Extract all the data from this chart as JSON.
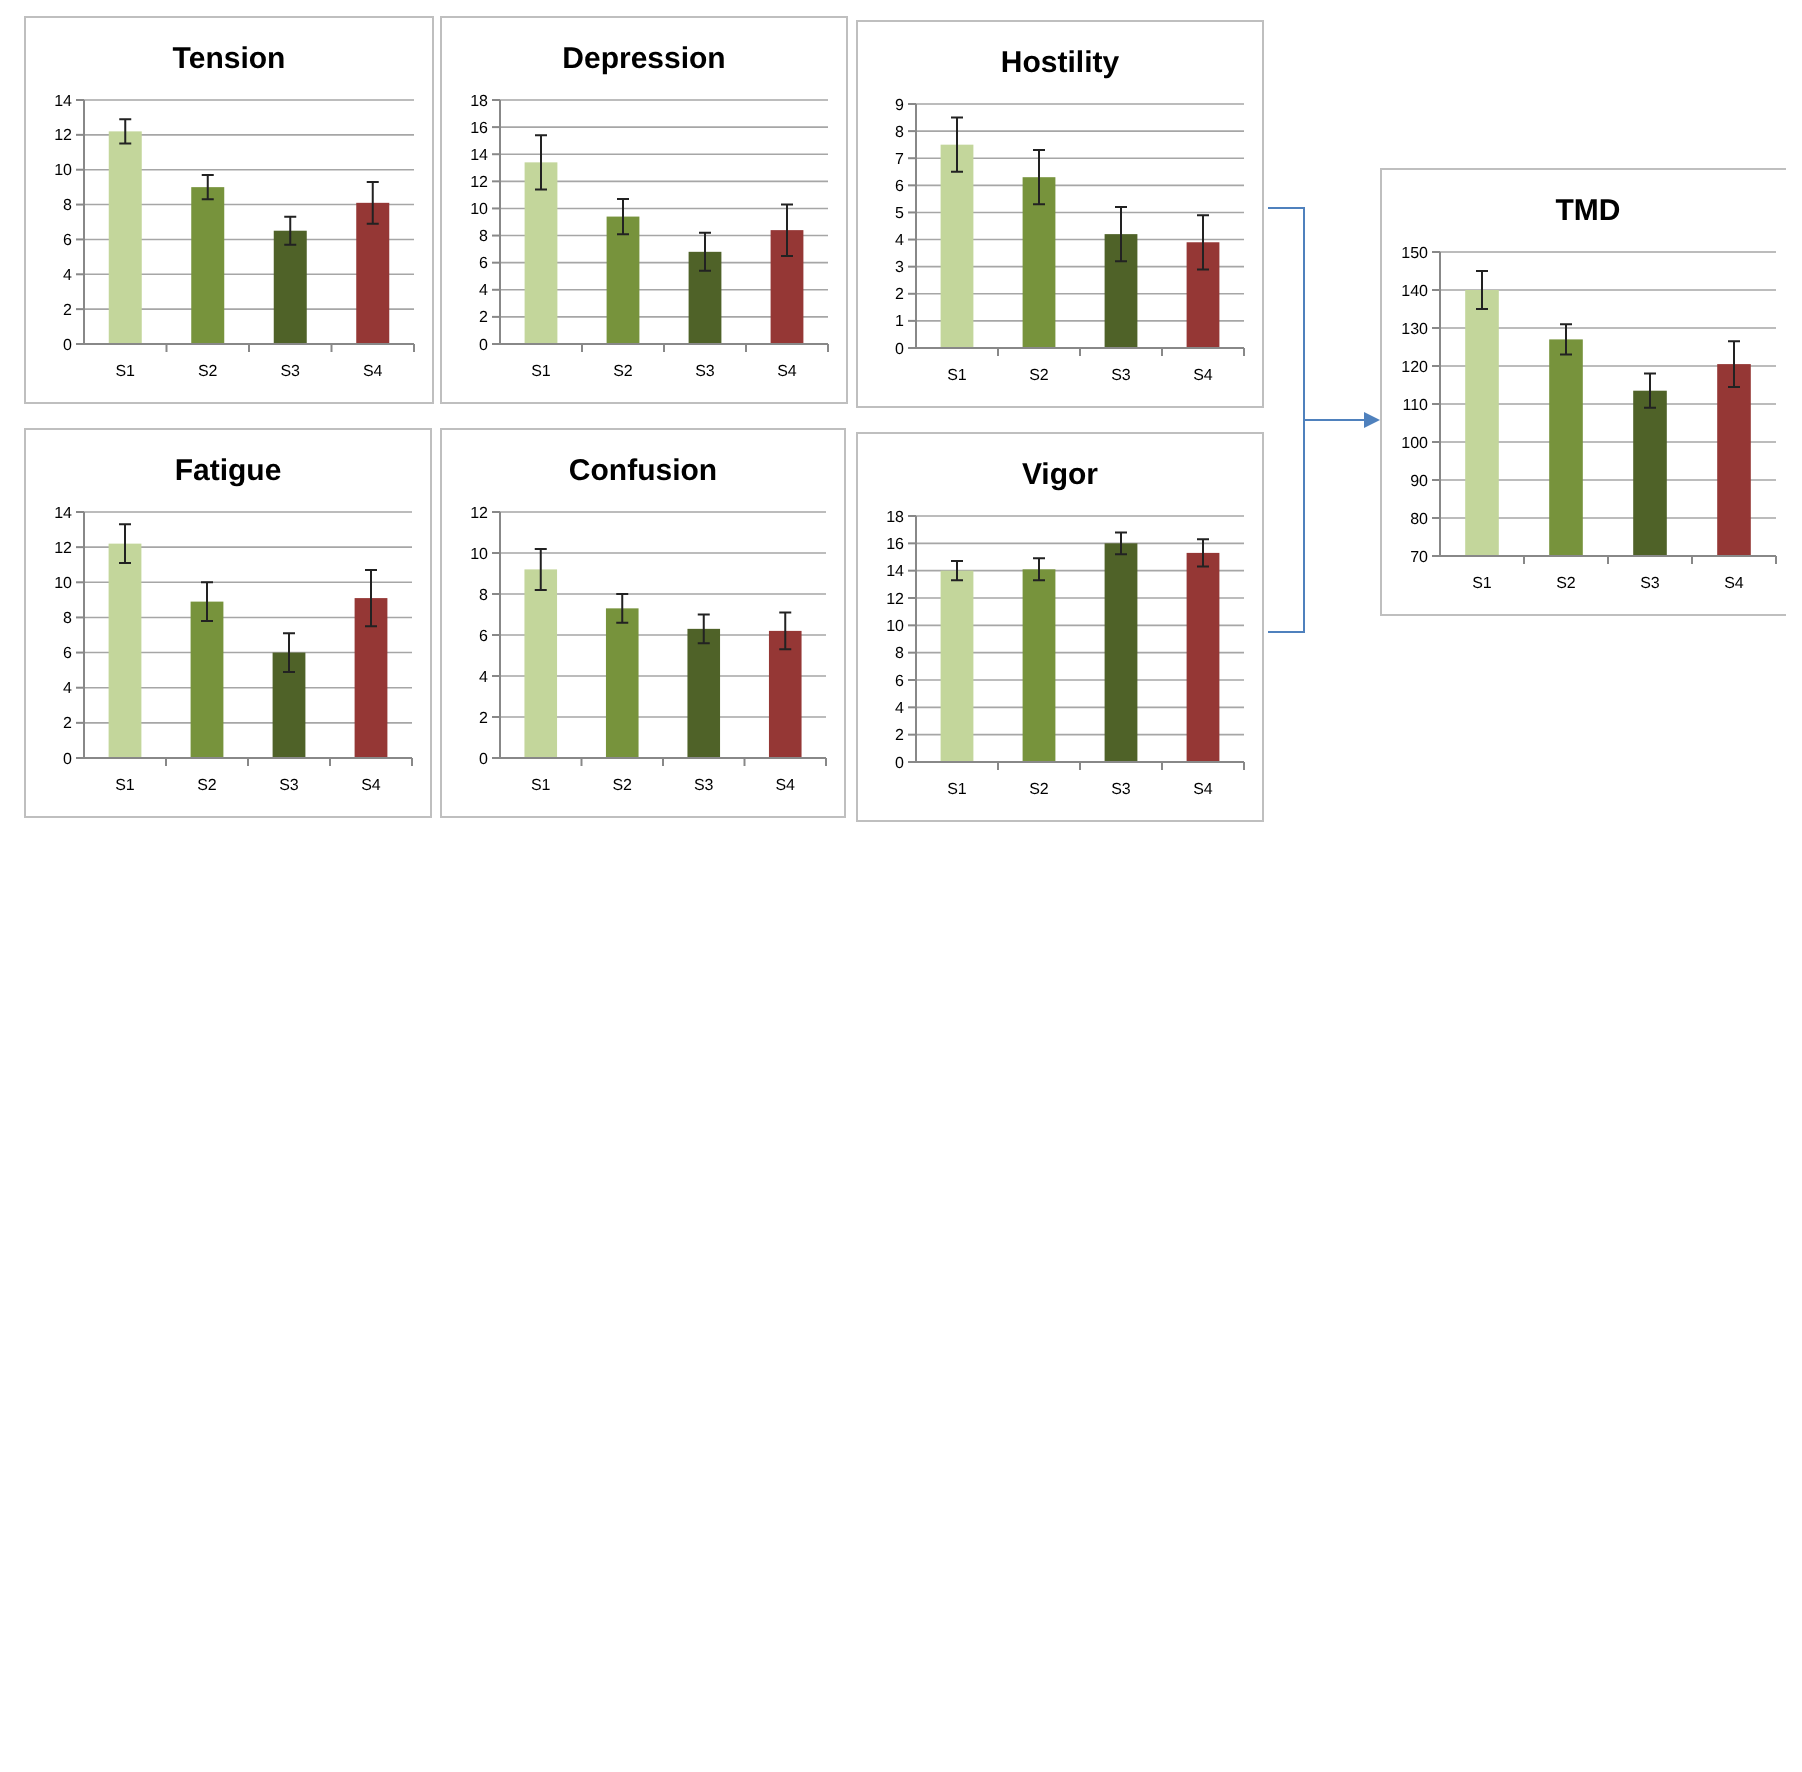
{
  "chart_data": [
    {
      "type": "bar",
      "title": "Tension",
      "categories": [
        "S1",
        "S2",
        "S3",
        "S4"
      ],
      "values": [
        12.2,
        9.0,
        6.5,
        8.1
      ],
      "errors": [
        0.7,
        0.7,
        0.8,
        1.2
      ],
      "colors": [
        "#c3d69b",
        "#77933c",
        "#4f6228",
        "#953735"
      ],
      "ylim": [
        0,
        14
      ],
      "yticks": [
        0,
        2,
        4,
        6,
        8,
        10,
        12,
        14
      ],
      "grid": "y"
    },
    {
      "type": "bar",
      "title": "Depression",
      "categories": [
        "S1",
        "S2",
        "S3",
        "S4"
      ],
      "values": [
        13.4,
        9.4,
        6.8,
        8.4
      ],
      "errors": [
        2.0,
        1.3,
        1.4,
        1.9
      ],
      "colors": [
        "#c3d69b",
        "#77933c",
        "#4f6228",
        "#953735"
      ],
      "ylim": [
        0,
        18
      ],
      "yticks": [
        0,
        2,
        4,
        6,
        8,
        10,
        12,
        14,
        16,
        18
      ],
      "grid": "y"
    },
    {
      "type": "bar",
      "title": "Hostility",
      "categories": [
        "S1",
        "S2",
        "S3",
        "S4"
      ],
      "values": [
        7.5,
        6.3,
        4.2,
        3.9
      ],
      "errors": [
        1.0,
        1.0,
        1.0,
        1.0
      ],
      "colors": [
        "#c3d69b",
        "#77933c",
        "#4f6228",
        "#953735"
      ],
      "ylim": [
        0,
        9
      ],
      "yticks": [
        0,
        1,
        2,
        3,
        4,
        5,
        6,
        7,
        8,
        9
      ],
      "grid": "y"
    },
    {
      "type": "bar",
      "title": "Fatigue",
      "categories": [
        "S1",
        "S2",
        "S3",
        "S4"
      ],
      "values": [
        12.2,
        8.9,
        6.0,
        9.1
      ],
      "errors": [
        1.1,
        1.1,
        1.1,
        1.6
      ],
      "colors": [
        "#c3d69b",
        "#77933c",
        "#4f6228",
        "#953735"
      ],
      "ylim": [
        0,
        14
      ],
      "yticks": [
        0,
        2,
        4,
        6,
        8,
        10,
        12,
        14
      ],
      "grid": "y"
    },
    {
      "type": "bar",
      "title": "Confusion",
      "categories": [
        "S1",
        "S2",
        "S3",
        "S4"
      ],
      "values": [
        9.2,
        7.3,
        6.3,
        6.2
      ],
      "errors": [
        1.0,
        0.7,
        0.7,
        0.9
      ],
      "colors": [
        "#c3d69b",
        "#77933c",
        "#4f6228",
        "#953735"
      ],
      "ylim": [
        0,
        12
      ],
      "yticks": [
        0,
        2,
        4,
        6,
        8,
        10,
        12
      ],
      "grid": "y"
    },
    {
      "type": "bar",
      "title": "Vigor",
      "categories": [
        "S1",
        "S2",
        "S3",
        "S4"
      ],
      "values": [
        14.0,
        14.1,
        16.0,
        15.3
      ],
      "errors": [
        0.7,
        0.8,
        0.8,
        1.0
      ],
      "colors": [
        "#c3d69b",
        "#77933c",
        "#4f6228",
        "#953735"
      ],
      "ylim": [
        0,
        18
      ],
      "yticks": [
        0,
        2,
        4,
        6,
        8,
        10,
        12,
        14,
        16,
        18
      ],
      "grid": "y"
    },
    {
      "type": "bar",
      "title": "TMD",
      "categories": [
        "S1",
        "S2",
        "S3",
        "S4"
      ],
      "values": [
        140,
        127,
        113.5,
        120.5
      ],
      "errors": [
        5,
        4,
        4.5,
        6
      ],
      "colors": [
        "#c3d69b",
        "#77933c",
        "#4f6228",
        "#953735"
      ],
      "ylim": [
        70,
        150
      ],
      "yticks": [
        70,
        80,
        90,
        100,
        110,
        120,
        130,
        140,
        150
      ],
      "grid": "y"
    }
  ]
}
